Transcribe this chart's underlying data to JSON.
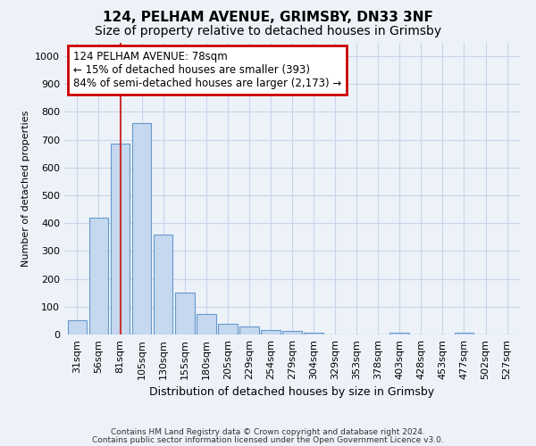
{
  "title1": "124, PELHAM AVENUE, GRIMSBY, DN33 3NF",
  "title2": "Size of property relative to detached houses in Grimsby",
  "xlabel": "Distribution of detached houses by size in Grimsby",
  "ylabel": "Number of detached properties",
  "categories": [
    "31sqm",
    "56sqm",
    "81sqm",
    "105sqm",
    "130sqm",
    "155sqm",
    "180sqm",
    "205sqm",
    "229sqm",
    "254sqm",
    "279sqm",
    "304sqm",
    "329sqm",
    "353sqm",
    "378sqm",
    "403sqm",
    "428sqm",
    "453sqm",
    "477sqm",
    "502sqm",
    "527sqm"
  ],
  "values": [
    50,
    420,
    685,
    760,
    360,
    152,
    75,
    40,
    30,
    17,
    12,
    8,
    0,
    0,
    0,
    8,
    0,
    0,
    8,
    0,
    0
  ],
  "bar_color": "#c5d8ef",
  "bar_edge_color": "#6699cc",
  "annotation_text_line1": "124 PELHAM AVENUE: 78sqm",
  "annotation_text_line2": "← 15% of detached houses are smaller (393)",
  "annotation_text_line3": "84% of semi-detached houses are larger (2,173) →",
  "annotation_box_color": "#ffffff",
  "annotation_box_edge_color": "#cc0000",
  "vline_color": "#cc3333",
  "vline_x": 2.0,
  "ylim": [
    0,
    1050
  ],
  "yticks": [
    0,
    100,
    200,
    300,
    400,
    500,
    600,
    700,
    800,
    900,
    1000
  ],
  "grid_color": "#c8d4e8",
  "footer1": "Contains HM Land Registry data © Crown copyright and database right 2024.",
  "footer2": "Contains public sector information licensed under the Open Government Licence v3.0.",
  "bg_color": "#edf2f9",
  "title1_fontsize": 11,
  "title2_fontsize": 10,
  "axis_fontsize": 8,
  "tick_fontsize": 8,
  "footer_fontsize": 6.5
}
